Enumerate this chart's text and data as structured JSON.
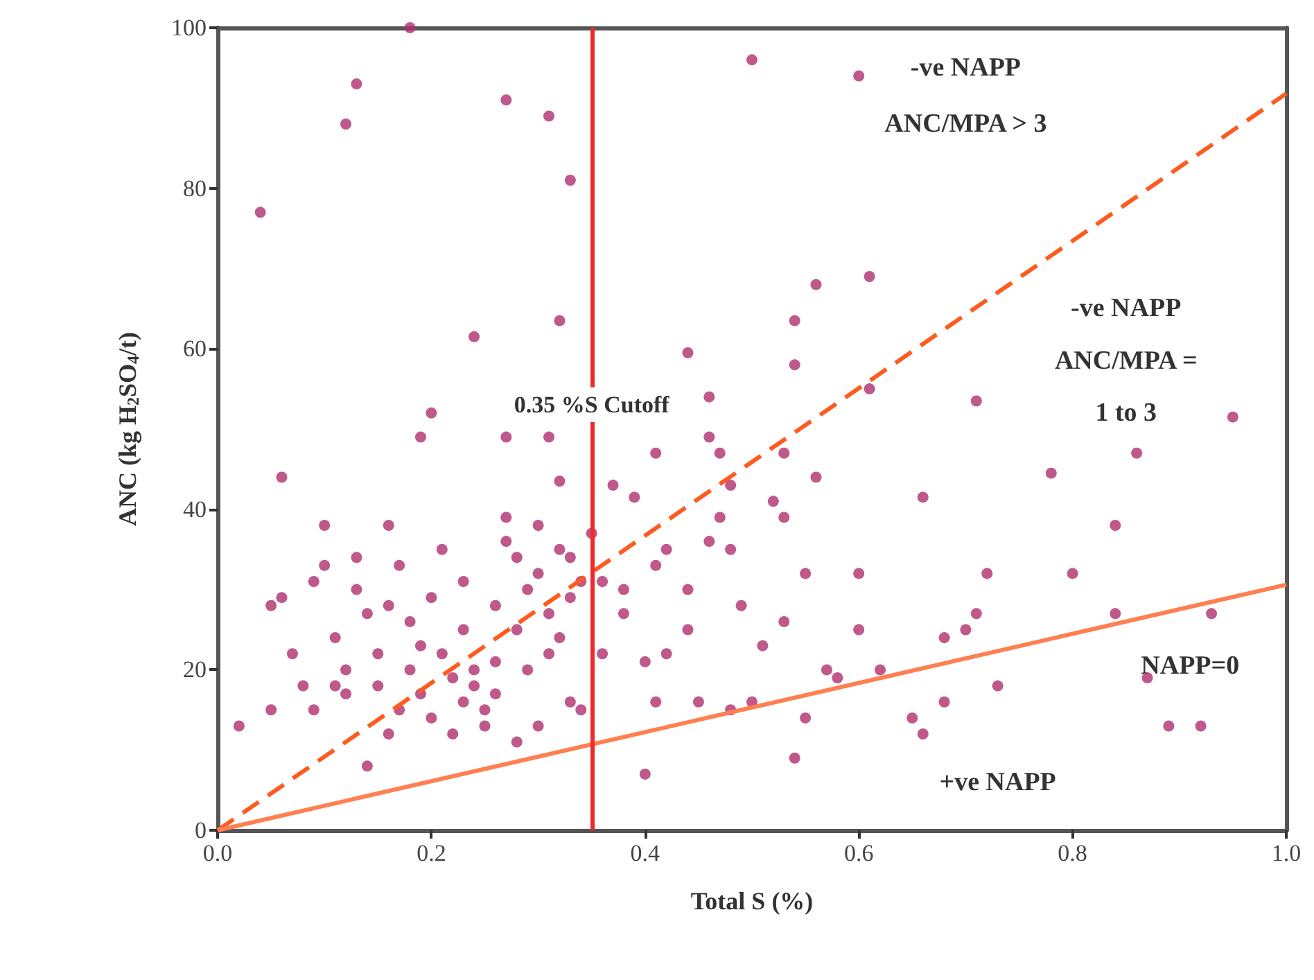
{
  "chart_data": {
    "type": "scatter",
    "xlabel": "Total S (%)",
    "ylabel": "ANC (kg H$_{2}$SO$_{4}$/t)",
    "xlim": [
      0,
      1
    ],
    "xticks": [
      {
        "value": 0,
        "label": "0.0"
      },
      {
        "value": 0.2,
        "label": "0.2"
      },
      {
        "value": 0.4,
        "label": "0.4"
      },
      {
        "value": 0.6,
        "label": "0.6"
      },
      {
        "value": 0.8,
        "label": "0.8"
      },
      {
        "value": 1,
        "label": "1.0"
      }
    ],
    "ylim": [
      0,
      100
    ],
    "yticks": [
      0,
      20,
      40,
      60,
      80,
      100
    ],
    "grid": false,
    "marker": "circle",
    "series": [
      {
        "color": "#b0306e",
        "x": [
          0.18,
          0.13,
          0.12,
          0.27,
          0.31,
          0.33,
          0.04,
          0.5,
          0.6,
          0.24,
          0.32,
          0.2,
          0.19,
          0.27,
          0.31,
          0.06,
          0.32,
          0.37,
          0.44,
          0.54,
          0.56,
          0.61,
          0.54,
          0.61,
          0.71,
          0.95,
          0.86,
          0.78,
          0.56,
          0.53,
          0.46,
          0.47,
          0.41,
          0.46,
          0.48,
          0.52,
          0.53,
          0.39,
          0.42,
          0.46,
          0.47,
          0.48,
          0.84,
          0.66,
          0.55,
          0.6,
          0.72,
          0.8,
          0.71,
          0.7,
          0.68,
          0.6,
          0.62,
          0.57,
          0.58,
          0.84,
          0.93,
          0.87,
          0.89,
          0.92,
          0.73,
          0.68,
          0.65,
          0.66,
          0.55,
          0.54,
          0.5,
          0.48,
          0.45,
          0.53,
          0.49,
          0.51,
          0.4,
          0.41,
          0.4,
          0.42,
          0.44,
          0.38,
          0.36,
          0.38,
          0.41,
          0.44,
          0.36,
          0.34,
          0.33,
          0.02,
          0.05,
          0.06,
          0.05,
          0.07,
          0.08,
          0.09,
          0.1,
          0.09,
          0.1,
          0.11,
          0.12,
          0.12,
          0.13,
          0.13,
          0.14,
          0.15,
          0.15,
          0.14,
          0.16,
          0.17,
          0.18,
          0.18,
          0.19,
          0.2,
          0.2,
          0.21,
          0.21,
          0.22,
          0.22,
          0.23,
          0.23,
          0.24,
          0.25,
          0.25,
          0.26,
          0.26,
          0.27,
          0.27,
          0.28,
          0.28,
          0.29,
          0.3,
          0.3,
          0.31,
          0.31,
          0.32,
          0.33,
          0.33,
          0.34,
          0.3,
          0.32,
          0.24,
          0.23,
          0.19,
          0.17,
          0.16,
          0.11,
          0.16,
          0.26,
          0.28,
          0.29,
          0.35
        ],
        "values": [
          100,
          93,
          88,
          91,
          89,
          81,
          77,
          96,
          94,
          61.5,
          63.5,
          52,
          49,
          49,
          49,
          44,
          43.5,
          43,
          59.5,
          63.5,
          68,
          69,
          58,
          55,
          53.5,
          51.5,
          47,
          44.5,
          44,
          47,
          49,
          47,
          47,
          54,
          43,
          41,
          39,
          41.5,
          35,
          36,
          39,
          35,
          38,
          41.5,
          32,
          32,
          32,
          32,
          27,
          25,
          24,
          25,
          20,
          20,
          19,
          27,
          27,
          19,
          13,
          13,
          18,
          16,
          14,
          12,
          14,
          9,
          16,
          15,
          16,
          26,
          28,
          23,
          7,
          16,
          21,
          22,
          25,
          27,
          31,
          30,
          33,
          30,
          22,
          15,
          16,
          13,
          15,
          29,
          28,
          22,
          18,
          15,
          33,
          31,
          38,
          24,
          20,
          17,
          34,
          30,
          27,
          22,
          18,
          8,
          38,
          33,
          26,
          20,
          17,
          14,
          29,
          35,
          22,
          19,
          12,
          31,
          25,
          18,
          15,
          13,
          21,
          28,
          36,
          39,
          34,
          25,
          20,
          32,
          38,
          27,
          22,
          35,
          29,
          34,
          31,
          13,
          24,
          20,
          16,
          23,
          15,
          12,
          18,
          28,
          17,
          11,
          30,
          37
        ]
      },
      {
        "type": "line",
        "color": "#ff5a1f",
        "line_style": "dashed",
        "marker": "none",
        "x": [
          0,
          1
        ],
        "values": [
          0,
          91.8
        ]
      },
      {
        "type": "line",
        "color": "#ff7f50",
        "line_style": "solid",
        "marker": "none",
        "x": [
          0,
          1
        ],
        "values": [
          0,
          30.6
        ]
      }
    ],
    "ref_lines": [
      {
        "axis": "x",
        "value": 0.35,
        "label": "0.35 %S Cutoff",
        "color": "#ee2a2a"
      }
    ],
    "annotations": [
      "-ve NAPP",
      "ANC/MPA > 3",
      "-ve NAPP",
      "ANC/MPA =",
      "1 to 3",
      "NAPP=0",
      "+ve NAPP"
    ]
  }
}
